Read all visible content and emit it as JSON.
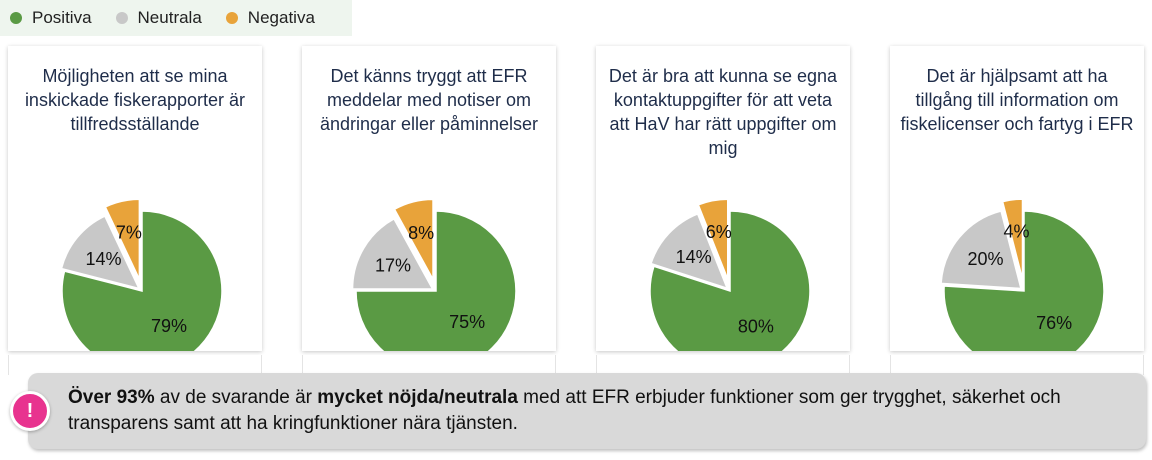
{
  "legend": [
    {
      "label": "Positiva",
      "color": "#5a9a44"
    },
    {
      "label": "Neutrala",
      "color": "#c8c8c8"
    },
    {
      "label": "Negativa",
      "color": "#e8a33a"
    }
  ],
  "chart_data": [
    {
      "type": "pie",
      "title": "Möjligheten att se mina inskickade fiskerapporter är tillfredsställande",
      "slices": [
        {
          "name": "Positiva",
          "value": 79,
          "label": "79%"
        },
        {
          "name": "Neutrala",
          "value": 14,
          "label": "14%"
        },
        {
          "name": "Negativa",
          "value": 7,
          "label": "7%"
        }
      ]
    },
    {
      "type": "pie",
      "title": "Det känns tryggt att EFR meddelar med notiser om ändringar eller påminnelser",
      "slices": [
        {
          "name": "Positiva",
          "value": 75,
          "label": "75%"
        },
        {
          "name": "Neutrala",
          "value": 17,
          "label": "17%"
        },
        {
          "name": "Negativa",
          "value": 8,
          "label": "8%"
        }
      ]
    },
    {
      "type": "pie",
      "title": "Det är bra att kunna se egna kontaktuppgifter för att veta att HaV har rätt uppgifter om mig",
      "slices": [
        {
          "name": "Positiva",
          "value": 80,
          "label": "80%"
        },
        {
          "name": "Neutrala",
          "value": 14,
          "label": "14%"
        },
        {
          "name": "Negativa",
          "value": 6,
          "label": "6%"
        }
      ]
    },
    {
      "type": "pie",
      "title": "Det är hjälpsamt att ha tillgång till information om fiskelicenser och fartyg i EFR",
      "slices": [
        {
          "name": "Positiva",
          "value": 76,
          "label": "76%"
        },
        {
          "name": "Neutrala",
          "value": 20,
          "label": "20%"
        },
        {
          "name": "Negativa",
          "value": 4,
          "label": "4%"
        }
      ]
    }
  ],
  "callout": {
    "badge": "!",
    "parts": [
      {
        "text": "Över 93%",
        "bold": true
      },
      {
        "text": " av de svarande är ",
        "bold": false
      },
      {
        "text": "mycket nöjda/neutrala",
        "bold": true
      },
      {
        "text": " med att EFR erbjuder funktioner som ger trygghet, säkerhet och transparens samt att ha kringfunktioner nära tjänsten.",
        "bold": false
      }
    ]
  }
}
